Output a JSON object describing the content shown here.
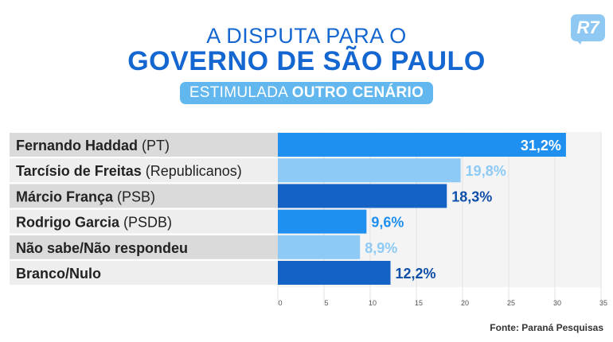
{
  "header": {
    "title_line1": "A DISPUTA PARA O",
    "title_line2": "GOVERNO DE SÃO PAULO",
    "subtitle_normal": "ESTIMULADA ",
    "subtitle_bold": "OUTRO CENÁRIO",
    "logo": "R7"
  },
  "chart_data": {
    "type": "bar",
    "orientation": "horizontal",
    "title": "GOVERNO DE SÃO PAULO",
    "categories": [
      {
        "name": "Fernando Haddad",
        "party": " (PT)"
      },
      {
        "name": "Tarcísio de Freitas",
        "party": " (Republicanos)"
      },
      {
        "name": "Márcio França",
        "party": " (PSB)"
      },
      {
        "name": "Rodrigo Garcia",
        "party": " (PSDB)"
      },
      {
        "name": "Não sabe/Não respondeu",
        "party": ""
      },
      {
        "name": "Branco/Nulo",
        "party": ""
      }
    ],
    "values": [
      31.2,
      19.8,
      18.3,
      9.6,
      8.9,
      12.2
    ],
    "value_labels": [
      "31,2%",
      "19,8%",
      "18,3%",
      "9,6%",
      "8,9%",
      "12,2%"
    ],
    "bar_colors": [
      "#1f8ff0",
      "#8ecaf6",
      "#1562c7",
      "#1f8ff0",
      "#8ecaf6",
      "#1562c7"
    ],
    "label_colors": [
      "#ffffff",
      "#8ecaf6",
      "#0e4fa8",
      "#1f8ff0",
      "#8ecaf6",
      "#0e4fa8"
    ],
    "xlim": [
      0,
      35
    ],
    "xticks": [
      0,
      5,
      10,
      15,
      20,
      25,
      30,
      35
    ],
    "grid": true,
    "xlabel": "",
    "ylabel": ""
  },
  "footer": {
    "source": "Fonte: Paraná Pesquisas"
  }
}
